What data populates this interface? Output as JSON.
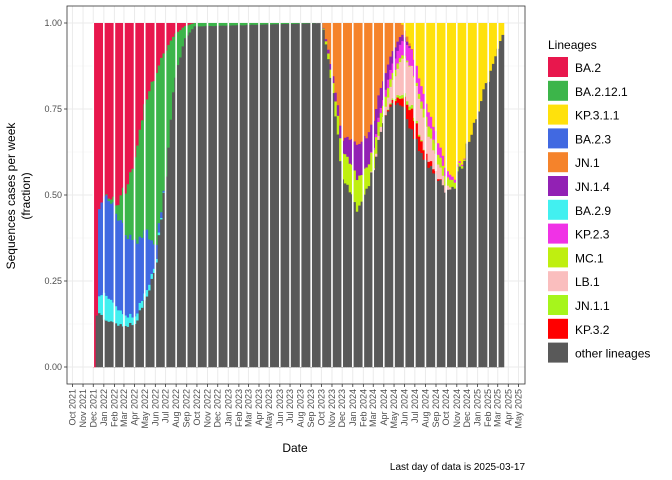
{
  "chart_data": {
    "type": "bar",
    "stacked": true,
    "xlabel": "Date",
    "ylabel_lines": [
      "Sequences cases per week",
      "(fraction)"
    ],
    "caption": "Last day of data is 2025-03-17",
    "ylim": [
      0,
      1
    ],
    "y_ticks": [
      "0.00",
      "0.25",
      "0.50",
      "0.75",
      "1.00"
    ],
    "x_range": [
      "2021-09-15",
      "2025-05-20"
    ],
    "x_ticks": [
      "Oct 2021",
      "Nov 2021",
      "Dec 2021",
      "Jan 2022",
      "Feb 2022",
      "Mar 2022",
      "Apr 2022",
      "May 2022",
      "Jun 2022",
      "Jul 2022",
      "Aug 2022",
      "Sep 2022",
      "Oct 2022",
      "Nov 2022",
      "Dec 2022",
      "Jan 2023",
      "Feb 2023",
      "Mar 2023",
      "Apr 2023",
      "May 2023",
      "Jun 2023",
      "Jul 2023",
      "Aug 2023",
      "Sep 2023",
      "Oct 2023",
      "Nov 2023",
      "Dec 2023",
      "Jan 2024",
      "Feb 2024",
      "Mar 2024",
      "Apr 2024",
      "May 2024",
      "Jun 2024",
      "Jul 2024",
      "Aug 2024",
      "Sep 2024",
      "Oct 2024",
      "Nov 2024",
      "Dec 2024",
      "Jan 2025",
      "Feb 2025",
      "Mar 2025",
      "Apr 2025",
      "May 2025"
    ],
    "grid": true,
    "legend_title": "Lineages",
    "legend_position": "right",
    "series": [
      {
        "name": "BA.2",
        "color": "#E8174D"
      },
      {
        "name": "BA.2.12.1",
        "color": "#3CB54A"
      },
      {
        "name": "KP.3.1.1",
        "color": "#FFE10C"
      },
      {
        "name": "BA.2.3",
        "color": "#4169E1"
      },
      {
        "name": "JN.1",
        "color": "#F5832B"
      },
      {
        "name": "JN.1.4",
        "color": "#9221B4"
      },
      {
        "name": "BA.2.9",
        "color": "#42F0F0"
      },
      {
        "name": "KP.2.3",
        "color": "#F032E6"
      },
      {
        "name": "MC.1",
        "color": "#BFEF10"
      },
      {
        "name": "LB.1",
        "color": "#FABEBE"
      },
      {
        "name": "JN.1.1",
        "color": "#A6F51C"
      },
      {
        "name": "KP.3.2",
        "color": "#FF0000"
      },
      {
        "name": "other lineages",
        "color": "#595959"
      }
    ],
    "keyframes": [
      {
        "date": "2021-12-01",
        "BA.2": 1.0,
        "BA.2.12.1": 0,
        "BA.2.3": 0,
        "BA.2.9": 0
      },
      {
        "date": "2021-12-08",
        "BA.2": 0.84,
        "BA.2.3": 0.0,
        "BA.2.9": 0.0,
        "other lineages": 0.16
      },
      {
        "date": "2021-12-15",
        "BA.2": 0.55,
        "BA.2.3": 0.25,
        "BA.2.9": 0.05,
        "other lineages": 0.15
      },
      {
        "date": "2022-01-01",
        "BA.2": 0.5,
        "BA.2.3": 0.28,
        "BA.2.9": 0.08,
        "other lineages": 0.14
      },
      {
        "date": "2022-02-01",
        "BA.2": 0.52,
        "BA.2.12.1": 0.02,
        "BA.2.3": 0.28,
        "BA.2.9": 0.05,
        "other lineages": 0.13
      },
      {
        "date": "2022-03-01",
        "BA.2": 0.48,
        "BA.2.12.1": 0.12,
        "BA.2.3": 0.25,
        "BA.2.9": 0.03,
        "other lineages": 0.12
      },
      {
        "date": "2022-04-01",
        "BA.2": 0.38,
        "BA.2.12.1": 0.25,
        "BA.2.3": 0.22,
        "BA.2.9": 0.02,
        "other lineages": 0.13
      },
      {
        "date": "2022-05-01",
        "BA.2": 0.22,
        "BA.2.12.1": 0.38,
        "BA.2.3": 0.18,
        "BA.2.9": 0.02,
        "other lineages": 0.2
      },
      {
        "date": "2022-06-01",
        "BA.2": 0.15,
        "BA.2.12.1": 0.5,
        "BA.2.3": 0.04,
        "BA.2.9": 0.01,
        "other lineages": 0.3
      },
      {
        "date": "2022-06-25",
        "BA.2": 0.08,
        "BA.2.12.1": 0.4,
        "BA.2.3": 0.0,
        "other lineages": 0.52
      },
      {
        "date": "2022-07-20",
        "BA.2": 0.04,
        "BA.2.12.1": 0.16,
        "other lineages": 0.8
      },
      {
        "date": "2022-08-20",
        "BA.2": 0.01,
        "BA.2.12.1": 0.04,
        "other lineages": 0.95
      },
      {
        "date": "2022-09-20",
        "BA.2": 0.0,
        "BA.2.12.1": 0.01,
        "other lineages": 0.99
      },
      {
        "date": "2023-10-01",
        "other lineages": 1.0
      },
      {
        "date": "2023-11-01",
        "JN.1": 0.15,
        "JN.1.4": 0.02,
        "MC.1": 0.03,
        "other lineages": 0.8
      },
      {
        "date": "2023-12-01",
        "JN.1": 0.34,
        "JN.1.4": 0.04,
        "MC.1": 0.08,
        "other lineages": 0.54
      },
      {
        "date": "2024-01-10",
        "JN.1": 0.34,
        "JN.1.4": 0.1,
        "MC.1": 0.09,
        "other lineages": 0.47
      },
      {
        "date": "2024-02-15",
        "JN.1": 0.33,
        "JN.1.4": 0.09,
        "MC.1": 0.06,
        "other lineages": 0.52
      },
      {
        "date": "2024-04-01",
        "JN.1": 0.14,
        "JN.1.4": 0.05,
        "KP.2.3": 0.02,
        "LB.1": 0.02,
        "MC.1": 0.03,
        "other lineages": 0.74
      },
      {
        "date": "2024-05-20",
        "JN.1": 0.03,
        "JN.1.4": 0.02,
        "KP.2.3": 0.04,
        "LB.1": 0.1,
        "KP.3.2": 0.02,
        "JN.1.1": 0.01,
        "MC.1": 0.01,
        "other lineages": 0.77
      },
      {
        "date": "2024-06-20",
        "KP.3.1.1": 0.08,
        "KP.2.3": 0.05,
        "LB.1": 0.12,
        "KP.3.2": 0.06,
        "JN.1.1": 0.01,
        "other lineages": 0.68
      },
      {
        "date": "2024-08-01",
        "KP.3.1.1": 0.24,
        "KP.2.3": 0.04,
        "LB.1": 0.08,
        "KP.3.2": 0.02,
        "MC.1": 0.03,
        "other lineages": 0.59
      },
      {
        "date": "2024-09-15",
        "KP.3.1.1": 0.38,
        "KP.2.3": 0.03,
        "LB.1": 0.03,
        "MC.1": 0.03,
        "other lineages": 0.53
      },
      {
        "date": "2024-10-15",
        "KP.3.1.1": 0.46,
        "KP.2.3": 0.01,
        "MC.1": 0.02,
        "other lineages": 0.51
      },
      {
        "date": "2024-12-01",
        "KP.3.1.1": 0.35,
        "other lineages": 0.65
      },
      {
        "date": "2025-01-15",
        "KP.3.1.1": 0.2,
        "other lineages": 0.8
      },
      {
        "date": "2025-03-17",
        "KP.3.1.1": 0.02,
        "other lineages": 0.98
      }
    ],
    "weekly_start": "2021-12-01",
    "weekly_end": "2025-03-17"
  }
}
